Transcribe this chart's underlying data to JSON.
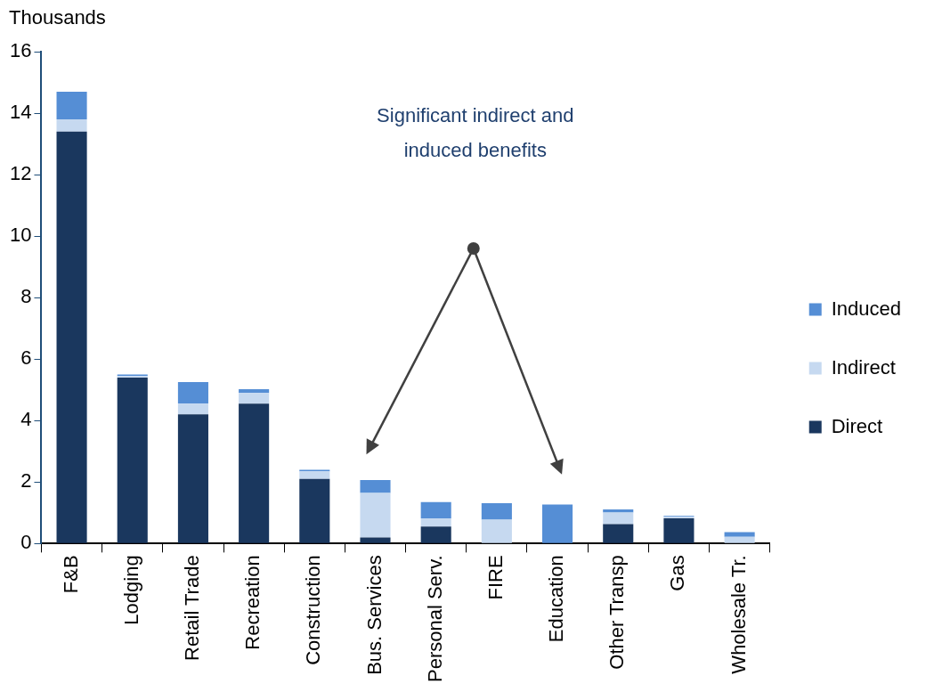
{
  "chart_data": {
    "type": "bar",
    "stacked": true,
    "ylabel": "Thousands",
    "categories": [
      "F&B",
      "Lodging",
      "Retail Trade",
      "Recreation",
      "Construction",
      "Bus. Services",
      "Personal Serv.",
      "FIRE",
      "Education",
      "Other Transp",
      "Gas",
      "Wholesale Tr."
    ],
    "series": [
      {
        "name": "Direct",
        "color": "#1a375e",
        "values": [
          13.4,
          5.4,
          4.2,
          4.55,
          2.1,
          0.2,
          0.55,
          0,
          0,
          0.63,
          0.82,
          0
        ]
      },
      {
        "name": "Indirect",
        "color": "#c6d9f0",
        "values": [
          0.4,
          0.05,
          0.35,
          0.35,
          0.25,
          1.45,
          0.27,
          0.78,
          0,
          0.38,
          0.05,
          0.22
        ]
      },
      {
        "name": "Induced",
        "color": "#558ed5",
        "values": [
          0.9,
          0.05,
          0.7,
          0.12,
          0.05,
          0.42,
          0.53,
          0.53,
          1.27,
          0.1,
          0.03,
          0.15
        ]
      }
    ],
    "ylim": [
      0,
      16
    ],
    "yticks": [
      0,
      2,
      4,
      6,
      8,
      10,
      12,
      14,
      16
    ],
    "grid": false,
    "legend": "right",
    "annotations": [
      "Significant indirect and induced benefits"
    ]
  }
}
